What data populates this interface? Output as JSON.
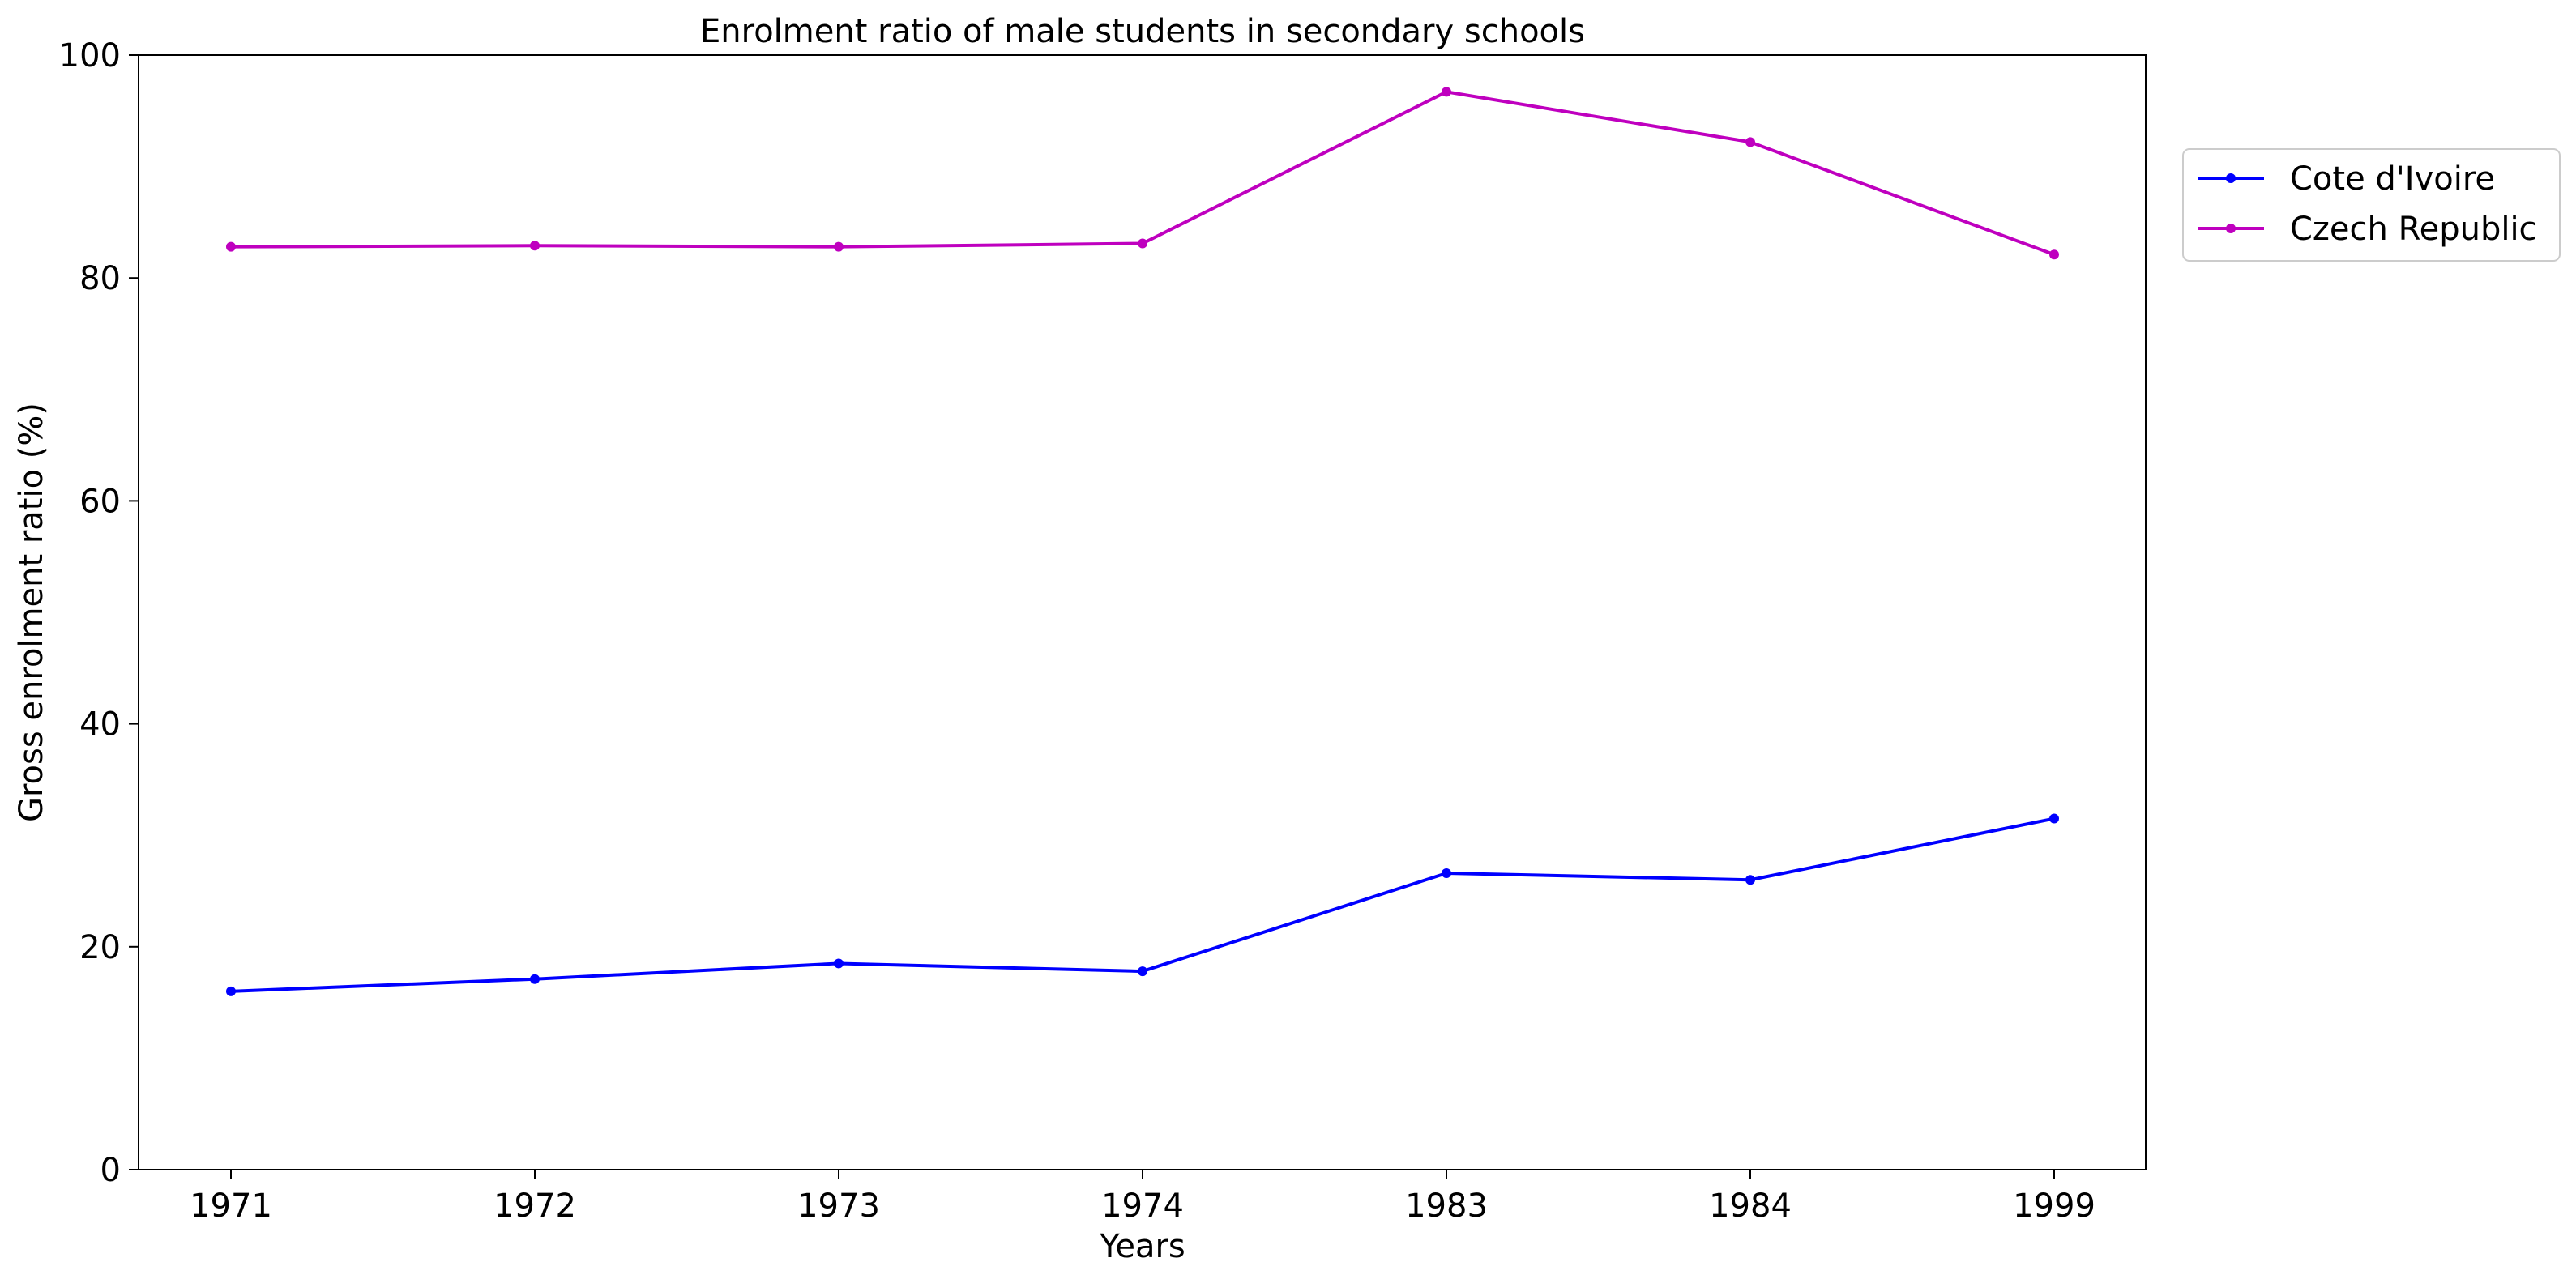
{
  "chart_data": {
    "type": "line",
    "title": "Enrolment ratio of male students in secondary schools",
    "xlabel": "Years",
    "ylabel": "Gross enrolment ratio (%)",
    "categories": [
      "1971",
      "1972",
      "1973",
      "1974",
      "1983",
      "1984",
      "1999"
    ],
    "ylim": [
      0,
      100
    ],
    "yticks": [
      0,
      20,
      40,
      60,
      80,
      100
    ],
    "grid": false,
    "legend_position": "outside-top-right",
    "series": [
      {
        "name": "Cote d'Ivoire",
        "color": "#0000ff",
        "values": [
          16.0,
          17.1,
          18.5,
          17.8,
          26.6,
          26.0,
          31.5
        ]
      },
      {
        "name": "Czech Republic",
        "color": "#bf00bf",
        "values": [
          82.8,
          82.9,
          82.8,
          83.1,
          96.7,
          92.2,
          82.1
        ]
      }
    ]
  }
}
